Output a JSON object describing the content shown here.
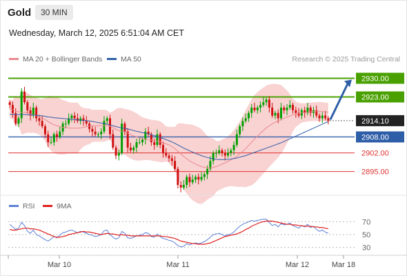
{
  "header": {
    "instrument": "Gold",
    "timeframe": "30 MIN",
    "datetime": "Wednesday, March 12, 2025 6:51:04 AM CET",
    "credit": "Research © 2025 Trading Central"
  },
  "legend": {
    "ma20": {
      "label": "MA 20 + Bollinger Bands",
      "color": "#e9898d"
    },
    "ma50": {
      "label": "MA 50",
      "color": "#2f5ea8"
    },
    "rsi": {
      "label": "RSI",
      "color": "#5b7fd6"
    },
    "ma9": {
      "label": "9MA",
      "color": "#e01e1e"
    }
  },
  "colors": {
    "up": "#00a000",
    "down": "#d01010",
    "band_fill": "#f9d2d2",
    "resistance": "#4aa000",
    "support": "#e03030",
    "pivot": "#2f5ea8",
    "arrow": "#2f5ea8",
    "current": "#222222"
  },
  "chart_data": [
    {
      "type": "candlestick",
      "ylim": [
        2890,
        2934
      ],
      "x_ticks": [
        "Mar 10",
        "Mar 11",
        "Mar 12",
        "Mar 18"
      ],
      "levels": [
        {
          "price": 2930.0,
          "label": "2930.00",
          "kind": "resistance"
        },
        {
          "price": 2923.0,
          "label": "2923.00",
          "kind": "resistance"
        },
        {
          "price": 2914.1,
          "label": "2914.10",
          "kind": "current"
        },
        {
          "price": 2908.0,
          "label": "2908.00",
          "kind": "pivot"
        },
        {
          "price": 2902.0,
          "label": "2902.00",
          "kind": "support"
        },
        {
          "price": 2895.0,
          "label": "2895.00",
          "kind": "support"
        }
      ],
      "arrow": {
        "from_price": 2914.5,
        "to_price": 2929.5
      },
      "close": [
        2920,
        2917,
        2913,
        2915,
        2925,
        2921,
        2918,
        2916,
        2919,
        2915,
        2914,
        2912,
        2909,
        2906,
        2906,
        2909,
        2908,
        2910,
        2913,
        2913,
        2915,
        2916,
        2915,
        2914,
        2915,
        2914,
        2913,
        2911,
        2910,
        2909,
        2909,
        2910,
        2914,
        2915,
        2909,
        2904,
        2901,
        2902,
        2913,
        2910,
        2904,
        2903,
        2904,
        2906,
        2906,
        2907,
        2910,
        2909,
        2906,
        2905,
        2909,
        2905,
        2902,
        2901,
        2900,
        2899,
        2896,
        2890,
        2889,
        2890,
        2893,
        2891,
        2892,
        2893,
        2892,
        2893,
        2894,
        2896,
        2899,
        2902,
        2902,
        2903,
        2902,
        2901,
        2902,
        2903,
        2905,
        2909,
        2912,
        2914,
        2915,
        2917,
        2919,
        2918,
        2919,
        2920,
        2921,
        2922,
        2919,
        2916,
        2917,
        2915,
        2919,
        2918,
        2919,
        2920,
        2918,
        2917,
        2916,
        2918,
        2917,
        2919,
        2917,
        2918,
        2916,
        2915,
        2916,
        2915,
        2914
      ],
      "ma20": [
        2918.5,
        2918.2,
        2917.8,
        2917.4,
        2917.3,
        2917.2,
        2917.0,
        2916.6,
        2916.3,
        2916.0,
        2915.6,
        2915.1,
        2914.5,
        2913.8,
        2913.1,
        2912.6,
        2912.2,
        2911.9,
        2911.6,
        2911.5,
        2911.4,
        2911.3,
        2911.3,
        2911.3,
        2911.4,
        2911.6,
        2911.8,
        2912.0,
        2912.1,
        2912.2,
        2912.2,
        2912.2,
        2912.2,
        2912.3,
        2912.0,
        2911.5,
        2910.9,
        2910.3,
        2910.2,
        2909.9,
        2909.4,
        2908.9,
        2908.4,
        2908.0,
        2907.6,
        2907.3,
        2907.2,
        2907.0,
        2906.8,
        2906.6,
        2906.5,
        2906.2,
        2905.8,
        2905.4,
        2905.0,
        2904.4,
        2903.6,
        2902.6,
        2901.6,
        2900.6,
        2899.8,
        2899.0,
        2898.4,
        2897.8,
        2897.3,
        2896.9,
        2896.6,
        2896.4,
        2896.4,
        2896.6,
        2896.9,
        2897.3,
        2897.8,
        2898.3,
        2898.8,
        2899.4,
        2900.0,
        2900.7,
        2901.6,
        2902.6,
        2903.6,
        2904.8,
        2906.0,
        2907.2,
        2908.3,
        2909.4,
        2910.4,
        2911.4,
        2912.2,
        2912.9,
        2913.5,
        2914.0,
        2914.6,
        2915.0,
        2915.5,
        2915.9,
        2916.2,
        2916.5,
        2916.7,
        2917.0,
        2917.1,
        2917.3,
        2917.4,
        2917.5,
        2917.5,
        2917.5,
        2917.5,
        2917.4,
        2917.3
      ],
      "ma50": [
        2916.5,
        2916.5,
        2916.4,
        2916.4,
        2916.4,
        2916.4,
        2916.3,
        2916.3,
        2916.2,
        2916.1,
        2916.0,
        2915.9,
        2915.7,
        2915.5,
        2915.4,
        2915.2,
        2915.1,
        2915.0,
        2914.9,
        2914.8,
        2914.7,
        2914.6,
        2914.5,
        2914.4,
        2914.3,
        2914.2,
        2914.1,
        2914.0,
        2913.8,
        2913.6,
        2913.4,
        2913.2,
        2913.0,
        2912.8,
        2912.5,
        2912.2,
        2911.9,
        2911.6,
        2911.4,
        2911.2,
        2911.0,
        2910.7,
        2910.4,
        2910.1,
        2909.9,
        2909.6,
        2909.4,
        2909.1,
        2908.8,
        2908.5,
        2908.2,
        2907.8,
        2907.4,
        2907.0,
        2906.6,
        2906.1,
        2905.6,
        2905.0,
        2904.4,
        2903.8,
        2903.3,
        2902.8,
        2902.3,
        2901.8,
        2901.4,
        2901.0,
        2900.6,
        2900.3,
        2900.0,
        2899.8,
        2899.6,
        2899.5,
        2899.5,
        2899.5,
        2899.6,
        2899.7,
        2899.9,
        2900.1,
        2900.4,
        2900.7,
        2901.0,
        2901.4,
        2901.8,
        2902.2,
        2902.6,
        2903.0,
        2903.4,
        2903.8,
        2904.2,
        2904.6,
        2905.0,
        2905.4,
        2905.8,
        2906.3,
        2906.8,
        2907.3,
        2907.8,
        2908.3,
        2908.8,
        2909.3,
        2909.8,
        2910.3,
        2910.8,
        2911.3,
        2911.8,
        2912.3,
        2912.8,
        2913.3,
        2913.7
      ]
    },
    {
      "type": "line",
      "name": "RSI",
      "ylim": [
        20,
        80
      ],
      "y_ticks": [
        70,
        50,
        30
      ],
      "rsi": [
        66,
        62,
        58,
        60,
        69,
        64,
        55,
        52,
        57,
        50,
        48,
        45,
        42,
        40,
        43,
        47,
        45,
        49,
        53,
        54,
        56,
        57,
        55,
        53,
        55,
        54,
        52,
        50,
        49,
        47,
        48,
        50,
        56,
        57,
        50,
        46,
        43,
        45,
        55,
        52,
        45,
        44,
        46,
        48,
        49,
        50,
        53,
        52,
        47,
        46,
        51,
        47,
        44,
        43,
        41,
        40,
        37,
        33,
        31,
        32,
        36,
        34,
        36,
        37,
        36,
        37,
        39,
        42,
        46,
        50,
        51,
        52,
        50,
        48,
        50,
        51,
        54,
        59,
        63,
        66,
        68,
        70,
        72,
        71,
        72,
        73,
        74,
        74,
        69,
        64,
        66,
        62,
        67,
        65,
        66,
        68,
        64,
        62,
        60,
        64,
        62,
        66,
        61,
        63,
        58,
        55,
        57,
        54,
        52
      ],
      "ma9": [
        58,
        57,
        57,
        58,
        59,
        60,
        60,
        59,
        59,
        58,
        57,
        55,
        53,
        51,
        49,
        47,
        46,
        46,
        47,
        48,
        50,
        51,
        52,
        53,
        54,
        55,
        54,
        54,
        53,
        52,
        51,
        50,
        51,
        52,
        51,
        51,
        50,
        49,
        50,
        49,
        49,
        48,
        48,
        48,
        48,
        48,
        48,
        48,
        48,
        48,
        48,
        48,
        47,
        47,
        46,
        45,
        44,
        42,
        40,
        39,
        38,
        37,
        36,
        36,
        35,
        35,
        35,
        36,
        37,
        39,
        41,
        43,
        45,
        47,
        48,
        49,
        50,
        51,
        53,
        55,
        58,
        60,
        63,
        65,
        67,
        69,
        70,
        71,
        71,
        71,
        70,
        69,
        68,
        67,
        66,
        66,
        65,
        65,
        64,
        64,
        63,
        63,
        63,
        62,
        62,
        61,
        61,
        60,
        59
      ]
    }
  ]
}
